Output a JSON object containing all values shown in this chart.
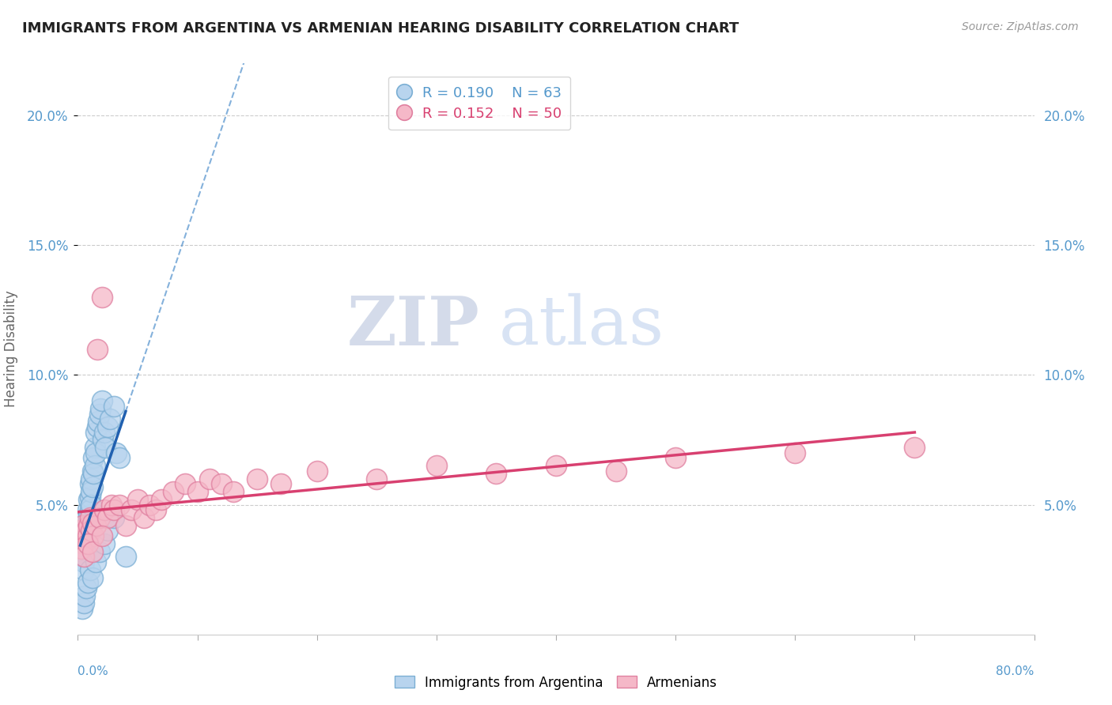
{
  "title": "IMMIGRANTS FROM ARGENTINA VS ARMENIAN HEARING DISABILITY CORRELATION CHART",
  "source": "Source: ZipAtlas.com",
  "ylabel": "Hearing Disability",
  "xlim": [
    0.0,
    0.8
  ],
  "ylim": [
    0.0,
    0.22
  ],
  "yticks": [
    0.05,
    0.1,
    0.15,
    0.2
  ],
  "ytick_labels": [
    "5.0%",
    "10.0%",
    "15.0%",
    "20.0%"
  ],
  "watermark_zip": "ZIP",
  "watermark_atlas": "atlas",
  "legend1_R": "0.190",
  "legend1_N": "63",
  "legend2_R": "0.152",
  "legend2_N": "50",
  "blue_color": "#b8d4ee",
  "blue_edge": "#7bafd4",
  "pink_color": "#f5b8c8",
  "pink_edge": "#e080a0",
  "blue_line_color": "#2060b0",
  "pink_line_color": "#d84070",
  "blue_dash_color": "#5090cc",
  "grid_color": "#cccccc",
  "background_color": "#ffffff",
  "blue_x": [
    0.002,
    0.003,
    0.003,
    0.004,
    0.004,
    0.004,
    0.005,
    0.005,
    0.005,
    0.005,
    0.006,
    0.006,
    0.006,
    0.006,
    0.007,
    0.007,
    0.007,
    0.008,
    0.008,
    0.008,
    0.009,
    0.009,
    0.01,
    0.01,
    0.01,
    0.01,
    0.011,
    0.011,
    0.011,
    0.012,
    0.012,
    0.013,
    0.013,
    0.014,
    0.014,
    0.015,
    0.015,
    0.016,
    0.017,
    0.018,
    0.019,
    0.02,
    0.021,
    0.022,
    0.023,
    0.025,
    0.027,
    0.03,
    0.032,
    0.035,
    0.004,
    0.005,
    0.006,
    0.007,
    0.008,
    0.01,
    0.012,
    0.015,
    0.018,
    0.022,
    0.025,
    0.03,
    0.04
  ],
  "blue_y": [
    0.04,
    0.035,
    0.038,
    0.033,
    0.036,
    0.03,
    0.032,
    0.028,
    0.025,
    0.038,
    0.042,
    0.038,
    0.035,
    0.03,
    0.045,
    0.04,
    0.035,
    0.048,
    0.043,
    0.038,
    0.052,
    0.046,
    0.058,
    0.053,
    0.048,
    0.042,
    0.06,
    0.055,
    0.05,
    0.063,
    0.057,
    0.068,
    0.062,
    0.072,
    0.065,
    0.078,
    0.07,
    0.08,
    0.082,
    0.085,
    0.087,
    0.09,
    0.075,
    0.078,
    0.072,
    0.08,
    0.083,
    0.088,
    0.07,
    0.068,
    0.01,
    0.012,
    0.015,
    0.018,
    0.02,
    0.025,
    0.022,
    0.028,
    0.032,
    0.035,
    0.04,
    0.045,
    0.03
  ],
  "pink_x": [
    0.002,
    0.003,
    0.004,
    0.005,
    0.006,
    0.007,
    0.008,
    0.009,
    0.01,
    0.011,
    0.012,
    0.013,
    0.015,
    0.016,
    0.018,
    0.02,
    0.022,
    0.025,
    0.028,
    0.03,
    0.035,
    0.04,
    0.045,
    0.05,
    0.055,
    0.06,
    0.065,
    0.07,
    0.08,
    0.09,
    0.1,
    0.11,
    0.12,
    0.13,
    0.15,
    0.17,
    0.2,
    0.25,
    0.3,
    0.35,
    0.4,
    0.45,
    0.5,
    0.6,
    0.7,
    0.003,
    0.005,
    0.008,
    0.012,
    0.02
  ],
  "pink_y": [
    0.04,
    0.038,
    0.042,
    0.035,
    0.037,
    0.04,
    0.038,
    0.042,
    0.045,
    0.04,
    0.043,
    0.038,
    0.042,
    0.11,
    0.045,
    0.13,
    0.048,
    0.045,
    0.05,
    0.048,
    0.05,
    0.042,
    0.048,
    0.052,
    0.045,
    0.05,
    0.048,
    0.052,
    0.055,
    0.058,
    0.055,
    0.06,
    0.058,
    0.055,
    0.06,
    0.058,
    0.063,
    0.06,
    0.065,
    0.062,
    0.065,
    0.063,
    0.068,
    0.07,
    0.072,
    0.033,
    0.03,
    0.035,
    0.032,
    0.038
  ]
}
